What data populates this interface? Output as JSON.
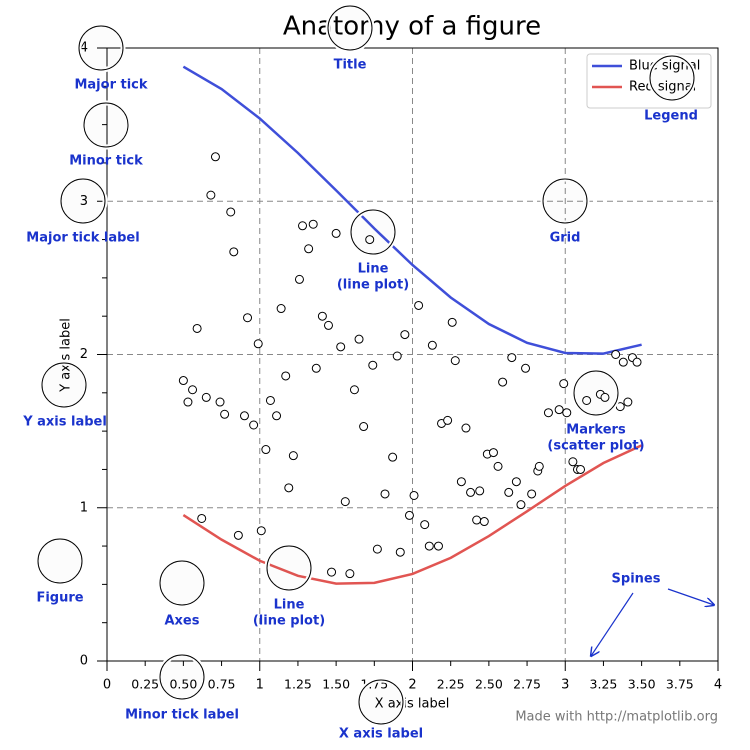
{
  "chart_data": {
    "type": "line",
    "title": "Anatomy of a figure",
    "xlabel": "X axis label",
    "ylabel": "Y axis label",
    "credit": "Made with http://matplotlib.org",
    "xlim": [
      0,
      4
    ],
    "ylim": [
      0,
      4
    ],
    "xticks": [
      0,
      1,
      2,
      3,
      4
    ],
    "yticks": [
      0,
      1,
      2,
      3,
      4
    ],
    "xminorticks": [
      0.25,
      {
        "value": 0.5,
        "label": "0.50"
      },
      0.75,
      1.25,
      {
        "value": 1.5,
        "label": "1.50"
      },
      1.75,
      2.25,
      {
        "value": 2.5,
        "label": "2.50"
      },
      2.75,
      3.25,
      {
        "value": 3.5,
        "label": "3.50"
      },
      3.75
    ],
    "yminorticks": [
      0.25,
      0.5,
      0.75,
      1.25,
      1.5,
      1.75,
      2.25,
      2.5,
      2.75,
      3.25,
      3.5,
      3.75
    ],
    "grid": true,
    "legend": "upper right",
    "series": [
      {
        "name": "Blue signal",
        "type": "line",
        "color": "#3f4fd9",
        "x": [
          0.5,
          0.75,
          1.0,
          1.25,
          1.5,
          1.75,
          2.0,
          2.25,
          2.5,
          2.75,
          3.0,
          3.25,
          3.5
        ],
        "values": [
          3.878,
          3.732,
          3.54,
          3.315,
          3.071,
          2.822,
          2.584,
          2.372,
          2.199,
          2.076,
          2.01,
          2.006,
          2.064
        ]
      },
      {
        "name": "Red signal",
        "type": "line",
        "color": "#e15552",
        "x": [
          0.5,
          0.75,
          1.0,
          1.25,
          1.5,
          1.75,
          2.0,
          2.25,
          2.5,
          2.75,
          3.0,
          3.25,
          3.5
        ],
        "values": [
          0.952,
          0.792,
          0.654,
          0.556,
          0.505,
          0.51,
          0.568,
          0.673,
          0.815,
          0.977,
          1.142,
          1.292,
          1.407
        ]
      },
      {
        "type": "scatter",
        "color": "#ffffff",
        "x": [
          0.71,
          0.68,
          0.81,
          0.83,
          0.59,
          0.5,
          0.56,
          0.53,
          0.65,
          0.74,
          0.77,
          0.9,
          0.92,
          0.99,
          0.96,
          1.04,
          1.07,
          1.11,
          1.14,
          1.17,
          1.19,
          1.22,
          1.26,
          1.28,
          1.35,
          1.32,
          1.41,
          1.45,
          1.37,
          1.5,
          1.53,
          1.56,
          1.62,
          1.65,
          1.68,
          1.72,
          1.74,
          1.77,
          1.82,
          1.87,
          1.9,
          1.92,
          1.95,
          1.98,
          2.01,
          2.04,
          2.08,
          2.11,
          2.13,
          2.17,
          2.19,
          2.23,
          2.26,
          2.28,
          2.32,
          2.35,
          2.38,
          2.42,
          2.44,
          2.47,
          2.49,
          2.53,
          2.56,
          2.59,
          2.63,
          2.65,
          2.68,
          2.71,
          2.74,
          2.78,
          2.82,
          2.83,
          2.89,
          2.96,
          2.99,
          3.01,
          3.05,
          3.08,
          3.1,
          3.14,
          3.23,
          3.26,
          3.33,
          3.36,
          3.38,
          3.41,
          3.44,
          3.47,
          0.62,
          0.86,
          1.01,
          1.47,
          1.59
        ],
        "values": [
          3.29,
          3.04,
          2.93,
          2.67,
          2.17,
          1.83,
          1.77,
          1.69,
          1.72,
          1.69,
          1.61,
          1.6,
          2.24,
          2.07,
          1.54,
          1.38,
          1.7,
          1.6,
          2.3,
          1.86,
          1.13,
          1.34,
          2.49,
          2.84,
          2.85,
          2.69,
          2.25,
          2.19,
          1.91,
          2.79,
          2.05,
          1.04,
          1.77,
          2.1,
          1.53,
          2.75,
          1.93,
          0.73,
          1.09,
          1.33,
          1.99,
          0.71,
          2.13,
          0.95,
          1.08,
          2.32,
          0.89,
          0.75,
          2.06,
          0.75,
          1.55,
          1.57,
          2.21,
          1.96,
          1.17,
          1.52,
          1.1,
          0.92,
          1.11,
          0.91,
          1.35,
          1.36,
          1.27,
          1.82,
          1.1,
          1.98,
          1.17,
          1.02,
          1.91,
          1.09,
          1.24,
          1.27,
          1.62,
          1.64,
          1.81,
          1.62,
          1.3,
          1.25,
          1.25,
          1.7,
          1.74,
          1.72,
          2.0,
          1.66,
          1.95,
          1.69,
          1.98,
          1.95,
          0.93,
          0.82,
          0.85,
          0.58,
          0.57
        ]
      }
    ],
    "annotations": [
      [
        "Major tick"
      ],
      [
        "Minor tick"
      ],
      [
        "Major tick label"
      ],
      [
        "Title"
      ],
      [
        "Legend"
      ],
      [
        "Grid"
      ],
      [
        "Line",
        "(line plot)"
      ],
      [
        "Y axis label"
      ],
      [
        "Markers",
        "(scatter plot)"
      ],
      [
        "Figure"
      ],
      [
        "Axes"
      ],
      [
        "Line",
        "(line plot)"
      ],
      [
        "Minor tick label"
      ],
      [
        "X axis label"
      ],
      [
        "Spines"
      ]
    ]
  }
}
